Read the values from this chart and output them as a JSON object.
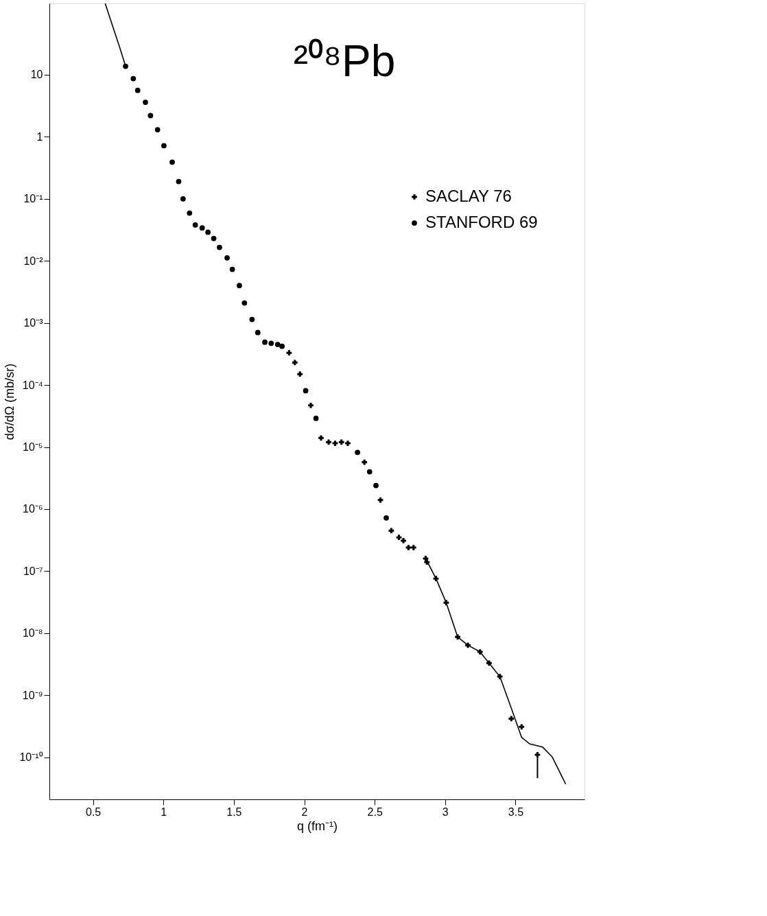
{
  "chart_data": {
    "type": "scatter",
    "title": "²⁰⁸Pb",
    "xlabel": "q (fm⁻¹)",
    "ylabel": "dσ/dΩ (mb/sr)",
    "xlim": [
      0.19,
      3.99
    ],
    "xticks": [
      0.5,
      1,
      1.5,
      2,
      2.5,
      3,
      3.5
    ],
    "ylim": [
      2.1e-11,
      141
    ],
    "log": true,
    "yticks": [
      10,
      1,
      {
        "value": 0.1,
        "label": "10⁻¹"
      },
      {
        "value": 0.01,
        "label": "10⁻²"
      },
      {
        "value": 0.001,
        "label": "10⁻³"
      },
      {
        "value": 0.0001,
        "label": "10⁻⁴"
      },
      {
        "value": 1e-05,
        "label": "10⁻⁵"
      },
      {
        "value": 1e-06,
        "label": "10⁻⁶"
      },
      {
        "value": 1e-07,
        "label": "10⁻⁷"
      },
      {
        "value": 1e-08,
        "label": "10⁻⁸"
      },
      {
        "value": 1e-09,
        "label": "10⁻⁹"
      },
      {
        "value": 1e-10,
        "label": "10⁻¹⁰"
      }
    ],
    "grid": false,
    "legend": "top right",
    "series": [
      {
        "name": "SACLAY 76",
        "color": "#000000",
        "marker": "cross",
        "x": [
          1.892,
          1.933,
          1.969,
          2.046,
          2.119,
          2.173,
          2.219,
          2.264,
          2.309,
          2.427,
          2.541,
          2.618,
          2.672,
          2.704,
          2.74,
          2.776,
          2.862,
          2.871,
          2.935,
          3.008,
          3.089,
          3.162,
          3.248,
          3.312,
          3.389,
          3.47,
          3.543,
          3.656
        ],
        "values": [
          0.00033,
          0.00023,
          0.00015,
          4.7e-05,
          1.4e-05,
          1.2e-05,
          1.15e-05,
          1.2e-05,
          1.15e-05,
          5.7e-06,
          1.4e-06,
          4.5e-07,
          3.5e-07,
          3.1e-07,
          2.4e-07,
          2.4e-07,
          1.6e-07,
          1.4e-07,
          7.6e-08,
          3.1e-08,
          8.7e-09,
          6.4e-09,
          5e-09,
          3.3e-09,
          2e-09,
          4.2e-10,
          3.1e-10,
          1.1e-10
        ],
        "errors": [
          null,
          null,
          null,
          null,
          null,
          null,
          null,
          null,
          null,
          null,
          null,
          null,
          null,
          null,
          null,
          null,
          null,
          null,
          null,
          null,
          null,
          null,
          null,
          null,
          null,
          null,
          null,
          [
            4.6e-11,
            1.1e-10
          ]
        ]
      },
      {
        "name": "STANFORD 69",
        "color": "#000000",
        "marker": "circle",
        "x": [
          0.731,
          0.786,
          0.817,
          0.872,
          0.908,
          0.958,
          1.003,
          1.062,
          1.108,
          1.139,
          1.185,
          1.226,
          1.275,
          1.316,
          1.357,
          1.398,
          1.452,
          1.489,
          1.539,
          1.575,
          1.629,
          1.67,
          1.72,
          1.765,
          1.811,
          1.842,
          2.01,
          2.083,
          2.378,
          2.464,
          2.509,
          2.582
        ],
        "values": [
          13.7,
          8.65,
          5.6,
          3.6,
          2.2,
          1.3,
          0.72,
          0.39,
          0.19,
          0.1,
          0.059,
          0.038,
          0.034,
          0.029,
          0.023,
          0.0165,
          0.0112,
          0.0073,
          0.004,
          0.0021,
          0.00114,
          0.0007,
          0.00049,
          0.00047,
          0.00045,
          0.00042,
          8.1e-05,
          2.9e-05,
          8.2e-06,
          4e-06,
          2.4e-06,
          7.2e-07
        ]
      },
      {
        "type": "line",
        "color": "#000000",
        "x": [
          0.586,
          0.641,
          0.686,
          0.731,
          2.0,
          2.862,
          2.935,
          3.008,
          3.089,
          3.162,
          3.248,
          3.312,
          3.389,
          3.47,
          3.543,
          3.602,
          3.693,
          3.761,
          3.806,
          3.856
        ],
        "values": [
          141,
          59,
          29,
          13.7,
          null,
          1.6e-07,
          7.6e-08,
          3.1e-08,
          8.7e-09,
          6.4e-09,
          5e-09,
          3.3e-09,
          2e-09,
          6.2e-10,
          2.1e-10,
          1.64e-10,
          1.46e-10,
          1.01e-10,
          6.3e-11,
          3.7e-11
        ]
      }
    ]
  }
}
